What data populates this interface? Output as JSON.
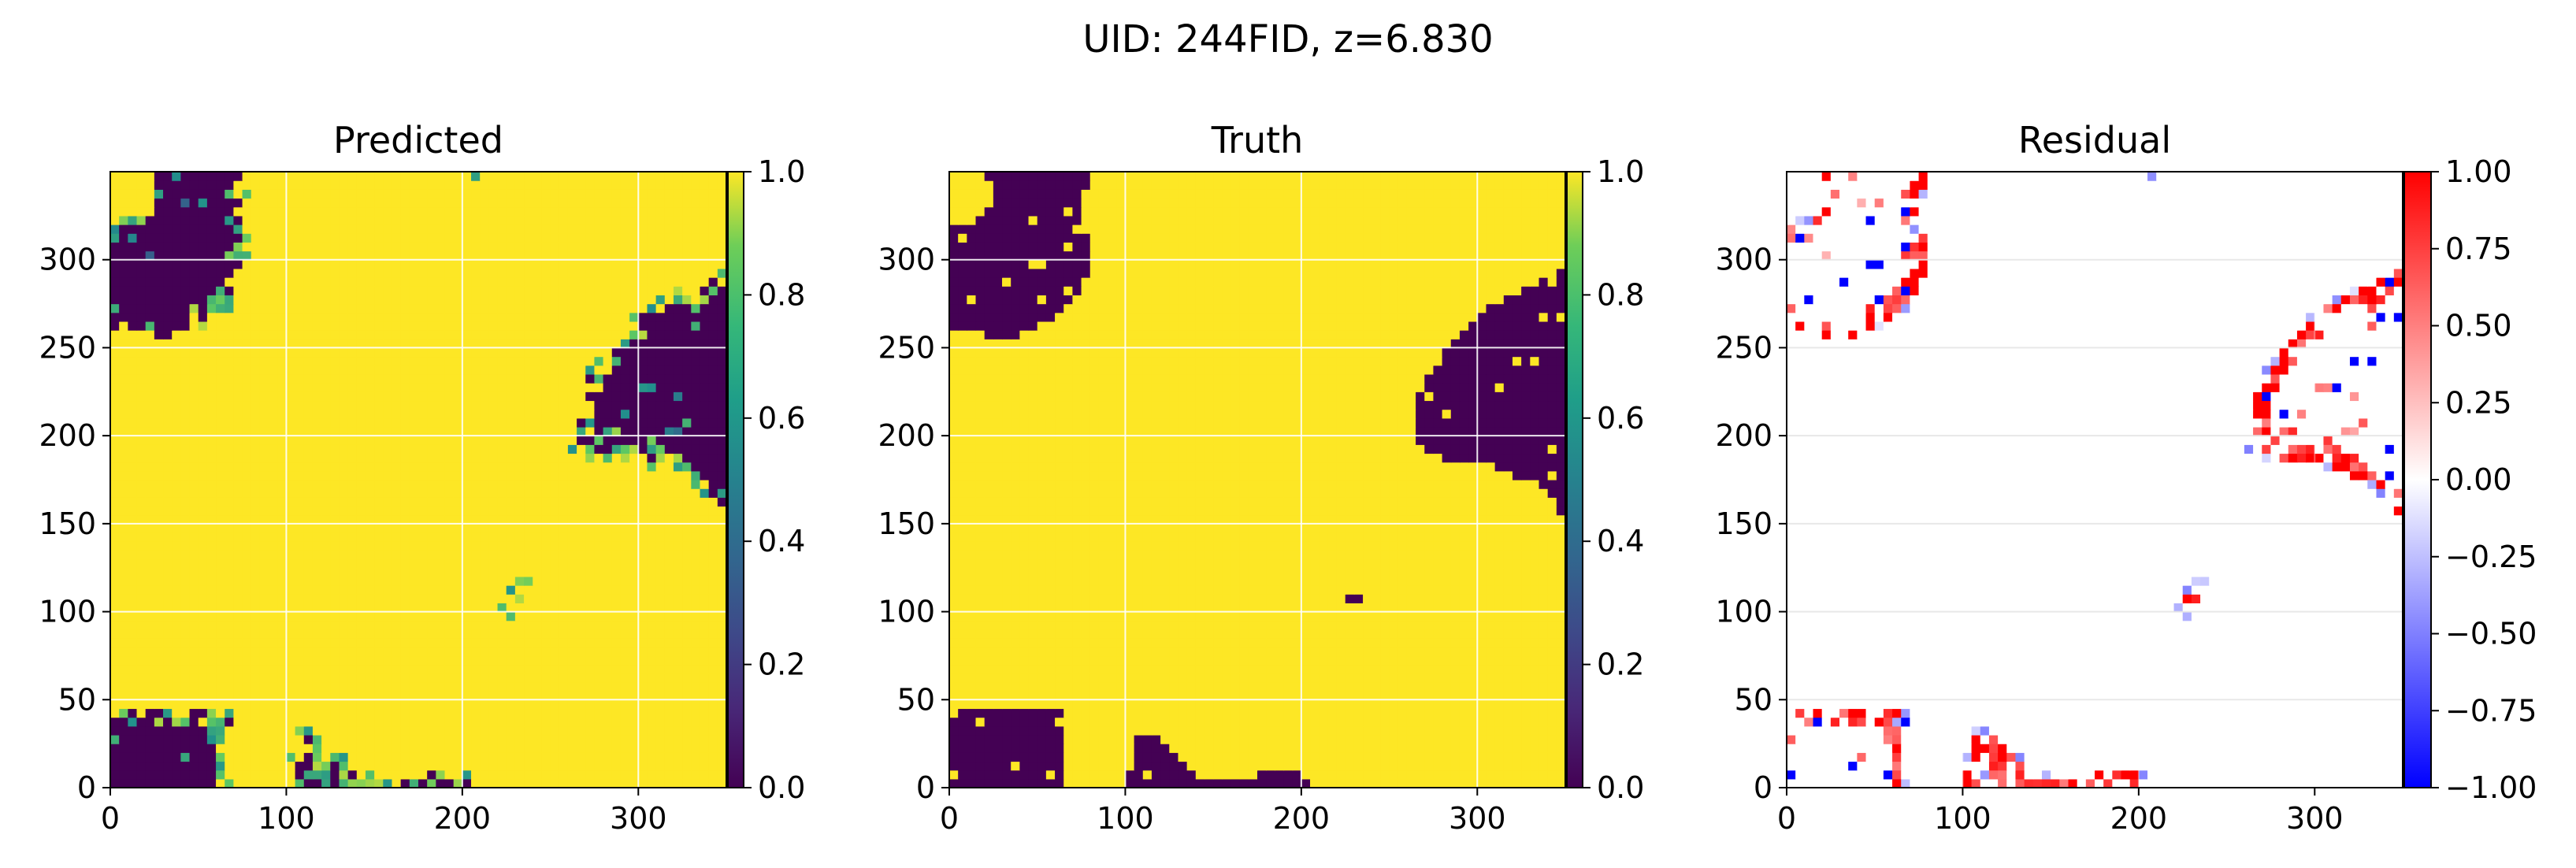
{
  "figure": {
    "suptitle": "UID: 244FID, z=6.830"
  },
  "chart_data": [
    {
      "type": "heatmap",
      "title": "Predicted",
      "xlim": [
        0,
        350
      ],
      "ylim": [
        0,
        350
      ],
      "xticks": [
        "0",
        "100",
        "200",
        "300"
      ],
      "yticks": [
        "0",
        "50",
        "100",
        "150",
        "200",
        "250",
        "300"
      ],
      "grid": true,
      "colormap": "viridis",
      "colorbar": {
        "vmin": 0.0,
        "vmax": 1.0,
        "ticks": [
          "0.0",
          "0.2",
          "0.4",
          "0.6",
          "0.8",
          "1.0"
        ]
      },
      "colors": {
        "low": "#440154",
        "mid": "#21918c",
        "high": "#fde725"
      },
      "description_of_field": "binary-like ionization map, values mostly 0 or 1 with noisy intermediate speckle"
    },
    {
      "type": "heatmap",
      "title": "Truth",
      "xlim": [
        0,
        350
      ],
      "ylim": [
        0,
        350
      ],
      "xticks": [
        "0",
        "100",
        "200",
        "300"
      ],
      "yticks": [
        "0",
        "50",
        "100",
        "150",
        "200",
        "250",
        "300"
      ],
      "grid": true,
      "colormap": "viridis",
      "colorbar": {
        "vmin": 0.0,
        "vmax": 1.0,
        "ticks": [
          "0.0",
          "0.2",
          "0.4",
          "0.6",
          "0.8",
          "1.0"
        ]
      },
      "colors": {
        "low": "#440154",
        "mid": "#21918c",
        "high": "#fde725"
      }
    },
    {
      "type": "heatmap",
      "title": "Residual",
      "xlim": [
        0,
        350
      ],
      "ylim": [
        0,
        350
      ],
      "xticks": [
        "0",
        "100",
        "200",
        "300"
      ],
      "yticks": [
        "0",
        "50",
        "100",
        "150",
        "200",
        "250",
        "300"
      ],
      "grid": true,
      "colormap": "bwr",
      "colorbar": {
        "vmin": -1.0,
        "vmax": 1.0,
        "ticks": [
          "−1.00",
          "−0.75",
          "−0.50",
          "−0.25",
          "0.00",
          "0.25",
          "0.50",
          "0.75",
          "1.00"
        ]
      },
      "colors": {
        "low": "#0000ff",
        "mid": "#ffffff",
        "high": "#ff0000"
      }
    }
  ]
}
